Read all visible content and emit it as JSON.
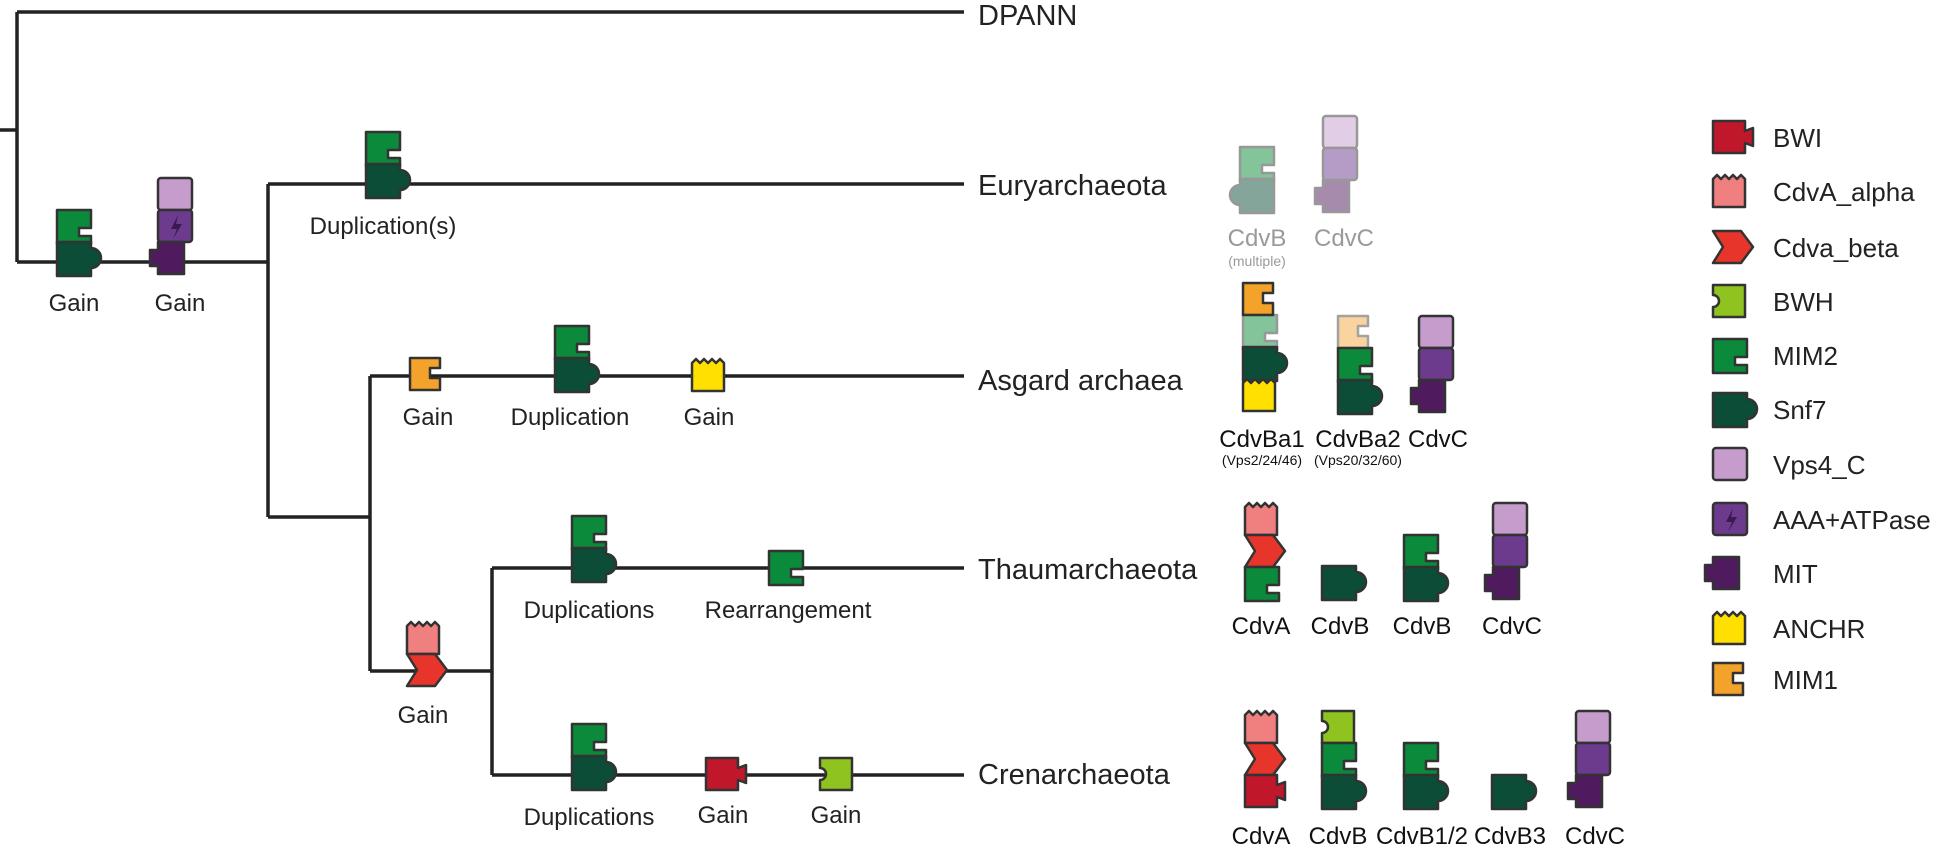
{
  "taxa": {
    "dpann": "DPANN",
    "eury": "Euryarchaeota",
    "asgard": "Asgard archaea",
    "thaum": "Thaumarchaeota",
    "cren": "Crenarchaeota"
  },
  "events": {
    "root_gain_mim2": "Gain",
    "root_gain_vps4": "Gain",
    "eury_dup": "Duplication(s)",
    "asgard_gain_mim1": "Gain",
    "asgard_dup": "Duplication",
    "asgard_gain_anchr": "Gain",
    "tacko_gain": "Gain",
    "thaum_dup": "Duplications",
    "thaum_rearr": "Rearrangement",
    "cren_dup": "Duplications",
    "cren_gain_bwi": "Gain",
    "cren_gain_bwh": "Gain"
  },
  "proteins": {
    "eury": [
      {
        "name": "CdvB",
        "sub": "(multiple)"
      },
      {
        "name": "CdvC"
      }
    ],
    "asgard": [
      {
        "name": "CdvBa1",
        "sub": "(Vps2/24/46)"
      },
      {
        "name": "CdvBa2",
        "sub": "(Vps20/32/60)"
      },
      {
        "name": "CdvC"
      }
    ],
    "thaum": [
      {
        "name": "CdvA"
      },
      {
        "name": "CdvB"
      },
      {
        "name": "CdvB"
      },
      {
        "name": "CdvC"
      }
    ],
    "cren": [
      {
        "name": "CdvA"
      },
      {
        "name": "CdvB"
      },
      {
        "name": "CdvB1/2"
      },
      {
        "name": "CdvB3"
      },
      {
        "name": "CdvC"
      }
    ]
  },
  "legend": [
    {
      "label": "BWI",
      "color": "#c0172b",
      "icon": "bwi-domain-icon"
    },
    {
      "label": "CdvA_alpha",
      "color": "#f08080",
      "icon": "cdva-alpha-domain-icon"
    },
    {
      "label": "Cdva_beta",
      "color": "#e8352b",
      "icon": "cdva-beta-domain-icon"
    },
    {
      "label": "BWH",
      "color": "#8fc31f",
      "icon": "bwh-domain-icon"
    },
    {
      "label": "MIM2",
      "color": "#0a8a3a",
      "icon": "mim2-domain-icon"
    },
    {
      "label": "Snf7",
      "color": "#0b4d36",
      "icon": "snf7-domain-icon"
    },
    {
      "label": "Vps4_C",
      "color": "#c59ccc",
      "icon": "vps4c-domain-icon"
    },
    {
      "label": "AAA+ATPase",
      "color": "#6d3b8e",
      "icon": "aaa-atpase-domain-icon"
    },
    {
      "label": "MIT",
      "color": "#4f1a5e",
      "icon": "mit-domain-icon"
    },
    {
      "label": "ANCHR",
      "color": "#ffe000",
      "icon": "anchr-domain-icon"
    },
    {
      "label": "MIM1",
      "color": "#f3a22a",
      "icon": "mim1-domain-icon"
    }
  ]
}
